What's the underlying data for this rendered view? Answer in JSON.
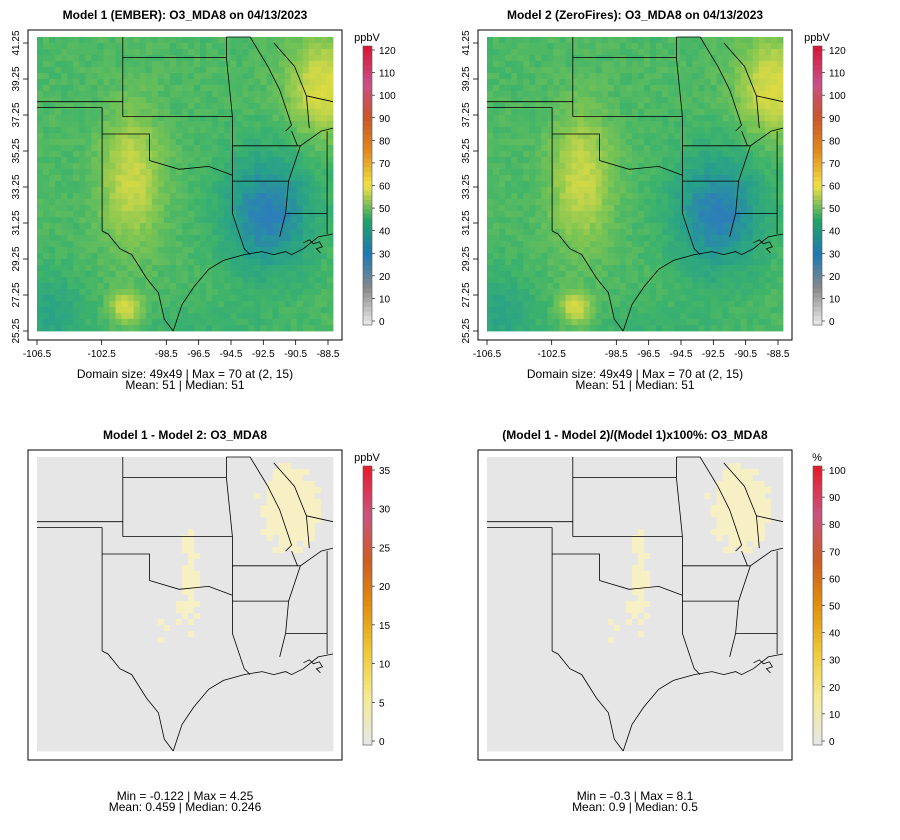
{
  "figure": {
    "panels": [
      {
        "title": "Model 1 (EMBER): O3_MDA8 on 04/13/2023",
        "scale": "ppbV",
        "scale_ticks": [
          "0",
          "10",
          "20",
          "30",
          "40",
          "50",
          "60",
          "70",
          "80",
          "90",
          "100",
          "110",
          "120"
        ],
        "palette": "ozone",
        "has_axes": true,
        "footer": [
          "Domain size: 49x49 | Max = 70 at (2, 15)",
          "Mean: 51 |  Median: 51"
        ]
      },
      {
        "title": "Model 2 (ZeroFires): O3_MDA8 on 04/13/2023",
        "scale": "ppbV",
        "scale_ticks": [
          "0",
          "10",
          "20",
          "30",
          "40",
          "50",
          "60",
          "70",
          "80",
          "90",
          "100",
          "110",
          "120"
        ],
        "palette": "ozone",
        "has_axes": true,
        "footer": [
          "Domain size: 49x49 | Max = 70 at (2, 15)",
          "Mean: 51 |  Median: 51"
        ]
      },
      {
        "title": "Model 1 - Model 2: O3_MDA8",
        "scale": "ppbV",
        "scale_ticks": [
          "0",
          "5",
          "10",
          "15",
          "20",
          "25",
          "30",
          "35"
        ],
        "palette": "difference",
        "has_axes": false,
        "footer": [
          "Min = -0.122 | Max = 4.25",
          "Mean: 0.459 |  Median: 0.246"
        ]
      },
      {
        "title": "(Model 1 - Model 2)/(Model 1)x100%: O3_MDA8",
        "scale": "%",
        "scale_ticks": [
          "0",
          "10",
          "20",
          "30",
          "40",
          "50",
          "60",
          "70",
          "80",
          "90",
          "100"
        ],
        "palette": "difference",
        "has_axes": false,
        "footer": [
          "Min = -0.3 | Max = 8.1",
          "Mean: 0.9 |  Median: 0.5"
        ]
      }
    ],
    "x_ticks": [
      "-106.5",
      "-102.5",
      "-98.5",
      "-96.5",
      "-94.5",
      "-92.5",
      "-90.5",
      "-88.5"
    ],
    "y_ticks": [
      "25.25",
      "27.25",
      "29.25",
      "31.25",
      "33.25",
      "35.25",
      "37.25",
      "39.25",
      "41.25"
    ]
  },
  "colors": {
    "frame": "#000000",
    "map_land_diff": "#e6e6e6",
    "diff_highlight": "#f6f0c4",
    "ozone_ramp": [
      "#2c7fb8",
      "#27a08a",
      "#3db36b",
      "#7ec552",
      "#c4d54a",
      "#f0de3e"
    ],
    "ozone_scale_ramp": [
      "#e6e6e6",
      "#8a8a8a",
      "#1f78b4",
      "#21a365",
      "#f2e045",
      "#e08b1e",
      "#c9562b",
      "#c94f88",
      "#d6193a"
    ],
    "diff_scale_ramp": [
      "#e6e6e6",
      "#f5eb92",
      "#efc937",
      "#e0900f",
      "#cc5d25",
      "#c95380",
      "#e61e2c"
    ]
  },
  "chart_data": [
    {
      "type": "heatmap",
      "title": "Model 1 (EMBER): O3_MDA8 on 04/13/2023",
      "units": "ppbV",
      "grid": "49x49",
      "max": 70,
      "max_at": [
        2,
        15
      ],
      "mean": 51,
      "median": 51,
      "xlim": [
        -106.5,
        -88.5
      ],
      "ylim": [
        25.25,
        41.25
      ],
      "color_range": [
        0,
        120
      ]
    },
    {
      "type": "heatmap",
      "title": "Model 2 (ZeroFires): O3_MDA8 on 04/13/2023",
      "units": "ppbV",
      "grid": "49x49",
      "max": 70,
      "max_at": [
        2,
        15
      ],
      "mean": 51,
      "median": 51,
      "xlim": [
        -106.5,
        -88.5
      ],
      "ylim": [
        25.25,
        41.25
      ],
      "color_range": [
        0,
        120
      ]
    },
    {
      "type": "heatmap",
      "title": "Model 1 - Model 2: O3_MDA8",
      "units": "ppbV",
      "min": -0.122,
      "max": 4.25,
      "mean": 0.459,
      "median": 0.246,
      "color_range": [
        0,
        35
      ]
    },
    {
      "type": "heatmap",
      "title": "(Model 1 - Model 2)/(Model 1)x100%: O3_MDA8",
      "units": "%",
      "min": -0.3,
      "max": 8.1,
      "mean": 0.9,
      "median": 0.5,
      "color_range": [
        0,
        100
      ]
    }
  ]
}
